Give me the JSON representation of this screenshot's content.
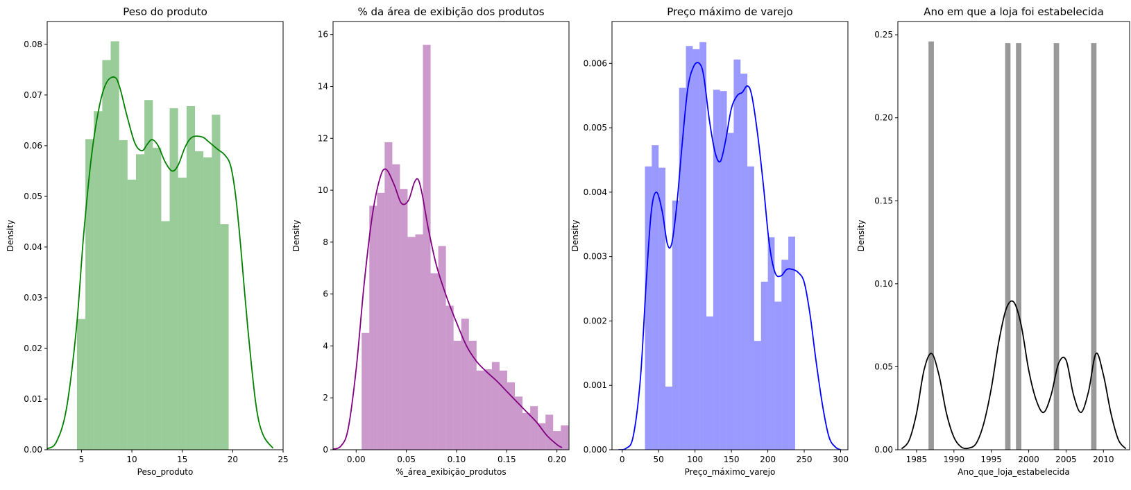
{
  "chart_data": [
    {
      "type": "histogram+kde",
      "title": "Peso do produto",
      "xlabel": "Peso_produto",
      "ylabel": "Density",
      "xlim": [
        1.6,
        25
      ],
      "ylim": [
        0,
        0.0845
      ],
      "xticks": [
        5,
        10,
        15,
        20,
        25
      ],
      "yticks": [
        0.0,
        0.01,
        0.02,
        0.03,
        0.04,
        0.05,
        0.06,
        0.07,
        0.08
      ],
      "ytick_labels": [
        "0.00",
        "0.01",
        "0.02",
        "0.03",
        "0.04",
        "0.05",
        "0.06",
        "0.07",
        "0.08"
      ],
      "grid": false,
      "bar_color": "#008000",
      "bar_alpha": 0.4,
      "line_color": "#008000",
      "bins": {
        "start": 4.555,
        "width": 0.836
      },
      "values": [
        0.0258,
        0.0613,
        0.0668,
        0.0769,
        0.0806,
        0.0611,
        0.0533,
        0.0583,
        0.069,
        0.0596,
        0.0451,
        0.0674,
        0.0537,
        0.0678,
        0.0589,
        0.0577,
        0.0661,
        0.0445
      ],
      "kde": {
        "x": [
          1.6,
          2.5,
          3.5,
          4.5,
          5.2,
          6.0,
          6.8,
          7.5,
          8.3,
          8.8,
          9.5,
          10.3,
          11.0,
          11.5,
          12.0,
          12.6,
          13.3,
          14.0,
          14.6,
          15.3,
          16.0,
          17.0,
          17.6,
          18.5,
          19.2,
          19.8,
          20.3,
          20.8,
          21.5,
          22.3,
          23.0,
          24.0
        ],
        "y": [
          0.0002,
          0.0015,
          0.008,
          0.024,
          0.042,
          0.058,
          0.068,
          0.0725,
          0.0735,
          0.0715,
          0.066,
          0.0605,
          0.059,
          0.0602,
          0.0612,
          0.06,
          0.0568,
          0.055,
          0.0562,
          0.0598,
          0.0617,
          0.0617,
          0.0608,
          0.0593,
          0.0582,
          0.056,
          0.05,
          0.04,
          0.024,
          0.009,
          0.003,
          0.0003
        ]
      }
    },
    {
      "type": "histogram+kde",
      "title": "% da área de exibição dos produtos",
      "xlabel": "%_área_exibição_produtos",
      "ylabel": "Density",
      "xlim": [
        -0.023,
        0.212
      ],
      "ylim": [
        0,
        16.5
      ],
      "xticks": [
        0.0,
        0.05,
        0.1,
        0.15,
        0.2
      ],
      "xtick_labels": [
        "0.00",
        "0.05",
        "0.10",
        "0.15",
        "0.20"
      ],
      "yticks": [
        0,
        2,
        4,
        6,
        8,
        10,
        12,
        14,
        16
      ],
      "grid": false,
      "bar_color": "#800080",
      "bar_alpha": 0.4,
      "line_color": "#800080",
      "bins": {
        "start": 0.0055,
        "width": 0.00763
      },
      "values": [
        4.5,
        9.4,
        9.9,
        11.85,
        11.0,
        10.05,
        8.2,
        8.3,
        15.6,
        6.8,
        7.85,
        5.55,
        4.2,
        5.05,
        4.2,
        3.05,
        3.1,
        3.38,
        3.05,
        2.6,
        2.05,
        1.42,
        1.68,
        1.02,
        1.35,
        0.72,
        0.94
      ],
      "kde": {
        "x": [
          -0.023,
          -0.015,
          -0.008,
          0.0,
          0.008,
          0.016,
          0.024,
          0.03,
          0.038,
          0.045,
          0.052,
          0.058,
          0.062,
          0.066,
          0.072,
          0.08,
          0.09,
          0.1,
          0.11,
          0.12,
          0.13,
          0.14,
          0.15,
          0.16,
          0.17,
          0.18,
          0.19,
          0.2,
          0.205
        ],
        "y": [
          0.02,
          0.15,
          0.8,
          3.1,
          6.4,
          9.0,
          10.5,
          10.8,
          10.2,
          9.5,
          9.6,
          10.3,
          10.4,
          9.8,
          8.5,
          7.1,
          5.9,
          4.9,
          4.0,
          3.4,
          3.0,
          2.65,
          2.25,
          1.85,
          1.45,
          1.05,
          0.55,
          0.2,
          0.08
        ]
      }
    },
    {
      "type": "histogram+kde",
      "title": "Preço máximo de varejo",
      "xlabel": "Preço_máximo_varejo",
      "ylabel": "Density",
      "xlim": [
        -14,
        310
      ],
      "ylim": [
        0,
        0.00665
      ],
      "xticks": [
        0,
        50,
        100,
        150,
        200,
        250,
        300
      ],
      "yticks": [
        0.0,
        0.001,
        0.002,
        0.003,
        0.004,
        0.005,
        0.006
      ],
      "ytick_labels": [
        "0.000",
        "0.001",
        "0.002",
        "0.003",
        "0.004",
        "0.005",
        "0.006"
      ],
      "grid": false,
      "bar_color": "#0000ff",
      "bar_alpha": 0.4,
      "line_color": "#0000ff",
      "bins": {
        "start": 31.29,
        "width": 9.374
      },
      "values": [
        0.0044,
        0.00473,
        0.00438,
        0.00098,
        0.00387,
        0.00562,
        0.00627,
        0.00622,
        0.00633,
        0.00207,
        0.00559,
        0.00557,
        0.00492,
        0.00606,
        0.00584,
        0.0044,
        0.00169,
        0.00261,
        0.0033,
        0.0023,
        0.00295,
        0.00331
      ],
      "kde": {
        "x": [
          -5,
          5,
          15,
          25,
          33,
          40,
          47,
          55,
          62,
          68,
          75,
          82,
          90,
          98,
          106,
          112,
          120,
          128,
          135,
          142,
          150,
          158,
          165,
          172,
          178,
          186,
          194,
          202,
          210,
          218,
          226,
          234,
          242,
          250,
          258,
          266,
          275,
          284,
          293,
          300
        ],
        "y": [
          0.0,
          2e-05,
          0.0002,
          0.0011,
          0.0026,
          0.0037,
          0.004,
          0.0037,
          0.0032,
          0.0032,
          0.0038,
          0.0047,
          0.0056,
          0.00595,
          0.006,
          0.0058,
          0.0051,
          0.0046,
          0.00448,
          0.0048,
          0.0053,
          0.0055,
          0.00555,
          0.00565,
          0.0055,
          0.0049,
          0.0041,
          0.0032,
          0.00275,
          0.0027,
          0.0028,
          0.0028,
          0.00275,
          0.0026,
          0.0021,
          0.0014,
          0.0007,
          0.0002,
          4e-05,
          0.0
        ]
      }
    },
    {
      "type": "histogram+kde",
      "title": "Ano em que a loja foi estabelecida",
      "xlabel": "Ano_que_loja_estabelecida",
      "ylabel": "Density",
      "xlim": [
        1982.5,
        2013.5
      ],
      "ylim": [
        0,
        0.258
      ],
      "xticks": [
        1985,
        1990,
        1995,
        2000,
        2005,
        2010
      ],
      "yticks": [
        0.0,
        0.05,
        0.1,
        0.15,
        0.2,
        0.25
      ],
      "ytick_labels": [
        "0.00",
        "0.05",
        "0.10",
        "0.15",
        "0.20",
        "0.25"
      ],
      "grid": false,
      "bar_color": "#000000",
      "bar_alpha": 0.4,
      "line_color": "#000000",
      "bins": {
        "start": 1986.6,
        "width": 0.72
      },
      "bar_positions": [
        1986.6,
        1996.85,
        1998.3,
        2003.35,
        2008.35
      ],
      "values": [
        0.246,
        0.245,
        0.245,
        0.245,
        0.245
      ],
      "kde": {
        "x": [
          1983.0,
          1984.0,
          1985.0,
          1986.0,
          1987.0,
          1988.0,
          1989.0,
          1990.0,
          1991.0,
          1992.0,
          1993.0,
          1994.0,
          1995.0,
          1996.0,
          1997.0,
          1998.0,
          1999.0,
          2000.0,
          2001.0,
          2002.0,
          2003.0,
          2004.0,
          2005.0,
          2006.0,
          2007.0,
          2008.0,
          2009.0,
          2010.0,
          2011.0,
          2012.0,
          2013.0
        ],
        "y": [
          0.0006,
          0.0056,
          0.022,
          0.048,
          0.058,
          0.045,
          0.022,
          0.0075,
          0.0016,
          0.001,
          0.004,
          0.016,
          0.037,
          0.065,
          0.085,
          0.089,
          0.075,
          0.048,
          0.03,
          0.0225,
          0.033,
          0.052,
          0.054,
          0.033,
          0.0225,
          0.035,
          0.058,
          0.045,
          0.022,
          0.006,
          0.0006
        ]
      }
    }
  ]
}
